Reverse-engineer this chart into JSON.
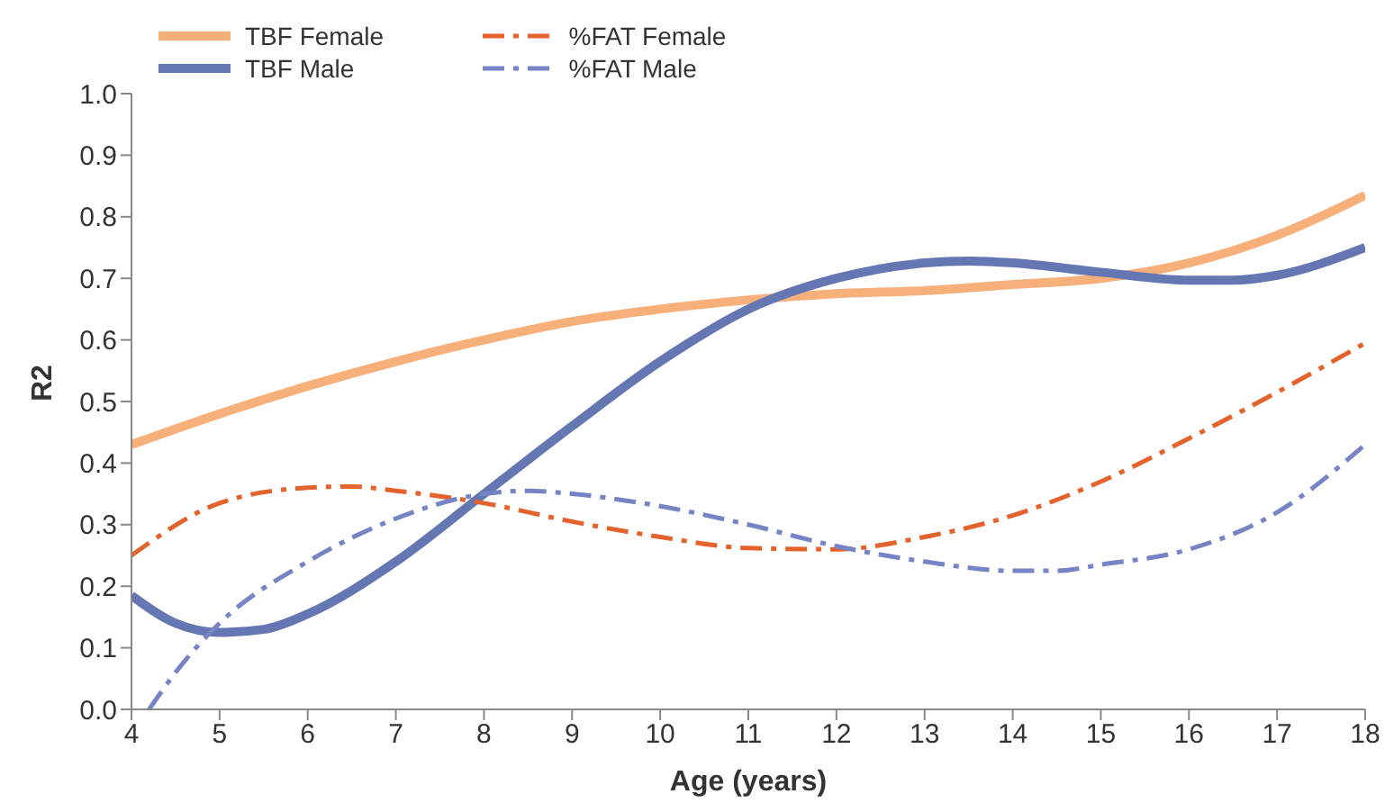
{
  "chart_data": {
    "type": "line",
    "xlabel": "Age (years)",
    "ylabel": "R2",
    "xlim": [
      4,
      18
    ],
    "xticks": [
      4,
      5,
      6,
      7,
      8,
      9,
      10,
      11,
      12,
      13,
      14,
      15,
      16,
      17,
      18
    ],
    "ylim": [
      0,
      1
    ],
    "yticks": [
      {
        "value": 0,
        "label": "0.0"
      },
      0.1,
      0.2,
      0.3,
      0.4,
      0.5,
      0.6,
      0.7,
      0.8,
      0.9,
      {
        "value": 1,
        "label": "1.0"
      }
    ],
    "grid": false,
    "legend": "top left",
    "marker": "none",
    "series": [
      {
        "name": "TBF Female",
        "color": "#f8b07a",
        "line_style": "solid",
        "x": [
          4,
          5,
          6,
          7,
          8,
          9,
          10,
          11,
          12,
          13,
          14,
          15,
          16,
          17,
          18
        ],
        "values": [
          0.43,
          0.48,
          0.525,
          0.565,
          0.6,
          0.63,
          0.65,
          0.665,
          0.675,
          0.68,
          0.69,
          0.7,
          0.725,
          0.77,
          0.835
        ]
      },
      {
        "name": "TBF Male",
        "color": "#6577b3",
        "line_style": "solid",
        "x": [
          4,
          4.5,
          5,
          5.5,
          6,
          7,
          8,
          9,
          10,
          11,
          12,
          13,
          13.5,
          14,
          15,
          16,
          16.5,
          17,
          18
        ],
        "values": [
          0.185,
          0.14,
          0.125,
          0.13,
          0.155,
          0.24,
          0.35,
          0.46,
          0.565,
          0.65,
          0.7,
          0.725,
          0.728,
          0.725,
          0.71,
          0.697,
          0.697,
          0.705,
          0.75
        ]
      },
      {
        "name": "%FAT Female",
        "color": "#e4622b",
        "line_style": "dashed",
        "x": [
          4,
          5,
          6,
          6.5,
          7,
          8,
          9,
          10,
          11,
          12,
          13,
          14,
          15,
          16,
          17,
          18
        ],
        "values": [
          0.25,
          0.335,
          0.36,
          0.362,
          0.355,
          0.335,
          0.305,
          0.28,
          0.262,
          0.26,
          0.28,
          0.315,
          0.37,
          0.44,
          0.515,
          0.595
        ]
      },
      {
        "name": "%FAT Male",
        "color": "#7683c4",
        "line_style": "dashed",
        "x": [
          4.2,
          4.5,
          5,
          6,
          7,
          8,
          8.5,
          9,
          10,
          11,
          12,
          13,
          14,
          14.5,
          15,
          16,
          17,
          18
        ],
        "values": [
          0,
          0.06,
          0.14,
          0.24,
          0.31,
          0.35,
          0.355,
          0.35,
          0.33,
          0.3,
          0.265,
          0.24,
          0.225,
          0.225,
          0.235,
          0.26,
          0.32,
          0.43
        ]
      }
    ]
  }
}
